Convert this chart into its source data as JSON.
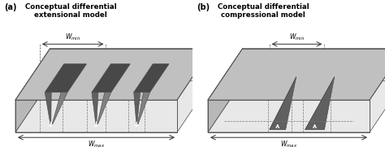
{
  "title_a": "Conceptual differential\nextensional model",
  "title_b": "Conceptual differential\ncompressional model",
  "label_a": "(a)",
  "label_b": "(b)",
  "bg_color": "#ffffff",
  "col_light": "#d8d8d8",
  "col_top": "#c0c0c0",
  "col_left_wall": "#b8b8b8",
  "col_front": "#e8e8e8",
  "col_dark1": "#606060",
  "col_dark2": "#484848",
  "col_dark3": "#808080"
}
